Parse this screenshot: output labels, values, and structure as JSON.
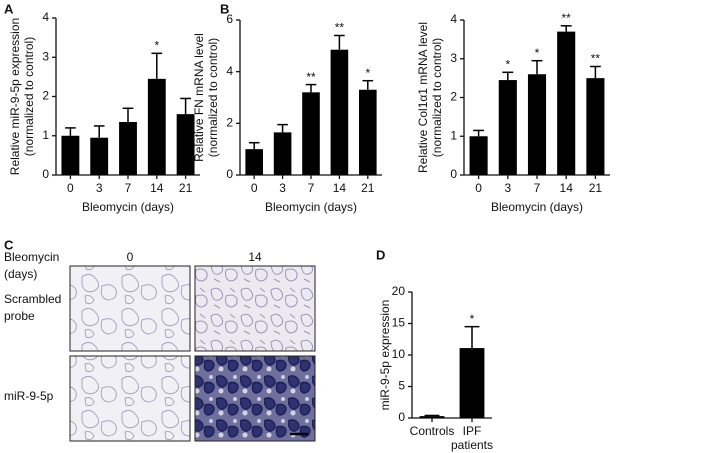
{
  "chart_data": [
    {
      "type": "bar",
      "panel": "A",
      "ylabel": [
        "Relative miR-9-5p expression",
        "(normalized to control)"
      ],
      "xlabel": "Bleomycin (days)",
      "categories": [
        [
          "0"
        ],
        [
          "3"
        ],
        [
          "7"
        ],
        [
          "14"
        ],
        [
          "21"
        ]
      ],
      "values": [
        1.0,
        0.95,
        1.35,
        2.45,
        1.55
      ],
      "errors": [
        0.2,
        0.3,
        0.35,
        0.65,
        0.4
      ],
      "color": "#000000",
      "ylim": [
        0,
        4
      ],
      "yticks": [
        0,
        1,
        2,
        3,
        4
      ],
      "annotations": [
        {
          "index": 3,
          "text": "*"
        }
      ]
    },
    {
      "type": "bar",
      "panel": "B",
      "ylabel": [
        "Relative FN mRNA level",
        "(normalized to control)"
      ],
      "xlabel": "Bleomycin (days)",
      "categories": [
        [
          "0"
        ],
        [
          "3"
        ],
        [
          "7"
        ],
        [
          "14"
        ],
        [
          "21"
        ]
      ],
      "values": [
        1.0,
        1.65,
        3.2,
        4.85,
        3.3
      ],
      "errors": [
        0.25,
        0.3,
        0.3,
        0.55,
        0.35
      ],
      "color": "#000000",
      "ylim": [
        0,
        6
      ],
      "yticks": [
        0,
        2,
        4,
        6
      ],
      "annotations": [
        {
          "index": 2,
          "text": "**"
        },
        {
          "index": 3,
          "text": "**"
        },
        {
          "index": 4,
          "text": "*"
        }
      ]
    },
    {
      "type": "bar",
      "ylabel": [
        "Relative Col1α1 mRNA level",
        "(normalized to control)"
      ],
      "xlabel": "Bleomycin (days)",
      "categories": [
        [
          "0"
        ],
        [
          "3"
        ],
        [
          "7"
        ],
        [
          "14"
        ],
        [
          "21"
        ]
      ],
      "values": [
        1.0,
        2.45,
        2.6,
        3.7,
        2.5
      ],
      "errors": [
        0.15,
        0.2,
        0.35,
        0.15,
        0.3
      ],
      "color": "#000000",
      "ylim": [
        0,
        4
      ],
      "yticks": [
        0,
        1,
        2,
        3,
        4
      ],
      "annotations": [
        {
          "index": 1,
          "text": "*"
        },
        {
          "index": 2,
          "text": "*"
        },
        {
          "index": 3,
          "text": "**"
        },
        {
          "index": 4,
          "text": "**"
        }
      ]
    },
    {
      "type": "bar",
      "panel": "D",
      "ylabel": [
        "miR-9-5p expression"
      ],
      "categories": [
        [
          "Controls"
        ],
        [
          "IPF",
          "patients"
        ]
      ],
      "values": [
        0.3,
        11.1
      ],
      "errors": [
        0.1,
        3.4
      ],
      "color": "#000000",
      "ylim": [
        0,
        20
      ],
      "yticks": [
        0,
        5,
        10,
        15,
        20
      ],
      "annotations": [
        {
          "index": 1,
          "text": "*"
        }
      ]
    }
  ],
  "image_panel": {
    "panel": "C",
    "column_header": [
      "Bleomycin",
      "(days)"
    ],
    "columns": [
      "0",
      "14"
    ],
    "rows": [
      [
        "Scrambled",
        "probe"
      ],
      [
        "miR-9-5p"
      ]
    ]
  }
}
